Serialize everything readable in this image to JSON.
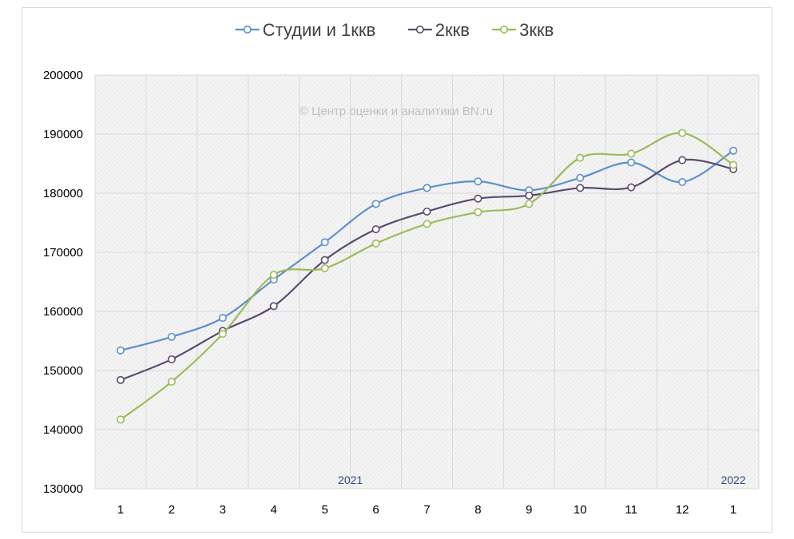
{
  "chart_data": {
    "type": "line",
    "title": "",
    "xlabel": "",
    "ylabel": "",
    "watermark": "© Центр оценки и аналитики BN.ru",
    "legend_position": "top",
    "grid": true,
    "ylim": [
      130000,
      200000
    ],
    "yticks": [
      130000,
      140000,
      150000,
      160000,
      170000,
      180000,
      190000,
      200000
    ],
    "categories": [
      "1",
      "2",
      "3",
      "4",
      "5",
      "6",
      "7",
      "8",
      "9",
      "10",
      "11",
      "12",
      "1"
    ],
    "year_labels": [
      {
        "text": "2021",
        "category_index": 4.5
      },
      {
        "text": "2022",
        "category_index": 12
      }
    ],
    "colors": {
      "year_label": "#2e4a7d",
      "plot_background": "#f2f2f2",
      "gridline": "#d9d9d9"
    },
    "series": [
      {
        "name": "Студии и 1ккв",
        "color": "#5b8fd0",
        "values": [
          153400,
          155700,
          158900,
          165400,
          171700,
          178200,
          180900,
          182000,
          180500,
          182600,
          185200,
          181900,
          187200
        ]
      },
      {
        "name": "2ккв",
        "color": "#5c4a72",
        "values": [
          148400,
          151900,
          156700,
          160900,
          168700,
          173900,
          176900,
          179100,
          179600,
          180900,
          181000,
          185600,
          184100
        ]
      },
      {
        "name": "3ккв",
        "color": "#9bbb59",
        "values": [
          141700,
          148100,
          156200,
          166200,
          167300,
          171500,
          174800,
          176800,
          178200,
          186000,
          186700,
          190200,
          184800
        ]
      }
    ]
  }
}
